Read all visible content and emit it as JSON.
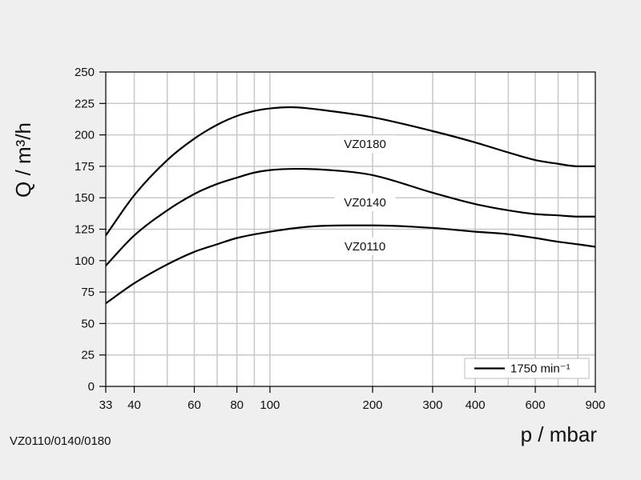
{
  "caption": "VZ0110/0140/0180",
  "chart_data": {
    "type": "line",
    "xlabel": "p / mbar",
    "ylabel": "Q / m³/h",
    "x_scale": "log",
    "xlim": [
      33,
      900
    ],
    "ylim": [
      0,
      250
    ],
    "x_ticks": [
      33,
      40,
      60,
      80,
      100,
      200,
      300,
      400,
      600,
      900
    ],
    "x_minor_grid": [
      50,
      70,
      90,
      500,
      700,
      800
    ],
    "y_ticks": [
      0,
      25,
      50,
      75,
      100,
      125,
      150,
      175,
      200,
      225,
      250
    ],
    "grid": true,
    "legend": {
      "label": "1750 min⁻¹",
      "position": "bottom-right"
    },
    "series": [
      {
        "name": "VZ0180",
        "x": [
          33,
          40,
          50,
          60,
          70,
          80,
          90,
          100,
          115,
          150,
          200,
          300,
          400,
          500,
          600,
          700,
          800,
          900
        ],
        "y": [
          120,
          152,
          180,
          197,
          208,
          215,
          219,
          221,
          222,
          219,
          214,
          203,
          194,
          186,
          180,
          177,
          175,
          175
        ]
      },
      {
        "name": "VZ0140",
        "x": [
          33,
          40,
          50,
          60,
          70,
          80,
          90,
          100,
          120,
          150,
          200,
          300,
          400,
          500,
          600,
          700,
          800,
          900
        ],
        "y": [
          96,
          120,
          140,
          153,
          161,
          166,
          170,
          172,
          173,
          172,
          168,
          154,
          145,
          140,
          137,
          136,
          135,
          135
        ]
      },
      {
        "name": "VZ0110",
        "x": [
          33,
          40,
          50,
          60,
          70,
          80,
          100,
          130,
          170,
          200,
          300,
          400,
          500,
          600,
          700,
          800,
          900
        ],
        "y": [
          66,
          82,
          97,
          107,
          113,
          118,
          123,
          127,
          128,
          128,
          126,
          123,
          121,
          118,
          115,
          113,
          111
        ]
      }
    ]
  }
}
